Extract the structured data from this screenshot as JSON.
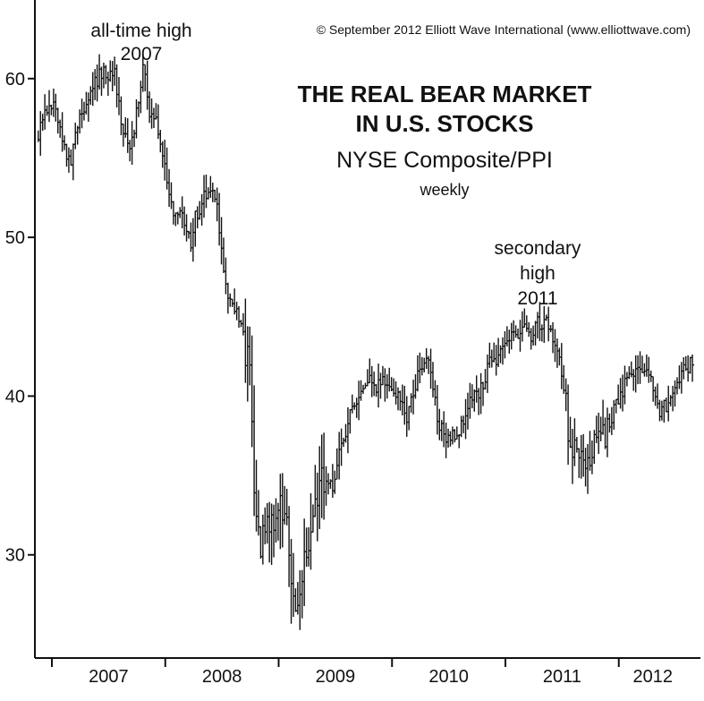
{
  "chart_data": {
    "type": "line",
    "subtype": "weekly price bars (high-low with close tick)",
    "title": "THE REAL BEAR MARKET IN U.S. STOCKS",
    "title_lines": [
      "THE REAL BEAR MARKET",
      "IN U.S. STOCKS"
    ],
    "subtitle": "NYSE Composite/PPI",
    "frequency": "weekly",
    "copyright": "© September 2012 Elliott Wave International (www.elliottwave.com)",
    "xlabel": "",
    "ylabel": "",
    "ylim": [
      23.5,
      64.5
    ],
    "xlim": [
      2006.85,
      2012.72
    ],
    "y_ticks": [
      30,
      40,
      50,
      60
    ],
    "x_year_labels": [
      {
        "label": "2007",
        "center": 2007.5
      },
      {
        "label": "2008",
        "center": 2008.5
      },
      {
        "label": "2009",
        "center": 2009.5
      },
      {
        "label": "2010",
        "center": 2010.5
      },
      {
        "label": "2011",
        "center": 2011.5
      },
      {
        "label": "2012",
        "center": 2012.3
      }
    ],
    "x_year_boundaries": [
      2007,
      2008,
      2009,
      2010,
      2011,
      2012
    ],
    "grid": false,
    "annotations": [
      {
        "lines": [
          "all-time high",
          "2007"
        ],
        "x": 2007.8,
        "y": 61.3
      },
      {
        "lines": [
          "secondary",
          "high",
          "2011"
        ],
        "x": 2011.35,
        "y": 45.8
      }
    ],
    "anchors": [
      [
        2006.88,
        56.5
      ],
      [
        2006.95,
        57.8
      ],
      [
        2007.02,
        58.2
      ],
      [
        2007.09,
        56.0
      ],
      [
        2007.16,
        54.5
      ],
      [
        2007.25,
        57.8
      ],
      [
        2007.35,
        59.5
      ],
      [
        2007.45,
        60.5
      ],
      [
        2007.55,
        60.3
      ],
      [
        2007.62,
        57.0
      ],
      [
        2007.7,
        55.5
      ],
      [
        2007.78,
        59.5
      ],
      [
        2007.8,
        61.2
      ],
      [
        2007.86,
        58.0
      ],
      [
        2007.93,
        57.0
      ],
      [
        2008.0,
        54.5
      ],
      [
        2008.05,
        52.0
      ],
      [
        2008.12,
        51.5
      ],
      [
        2008.18,
        51.0
      ],
      [
        2008.22,
        49.5
      ],
      [
        2008.27,
        51.5
      ],
      [
        2008.33,
        52.3
      ],
      [
        2008.4,
        53.2
      ],
      [
        2008.45,
        52.5
      ],
      [
        2008.5,
        48.5
      ],
      [
        2008.56,
        46.0
      ],
      [
        2008.62,
        45.5
      ],
      [
        2008.68,
        44.0
      ],
      [
        2008.72,
        42.5
      ],
      [
        2008.76,
        40.5
      ],
      [
        2008.79,
        32.5
      ],
      [
        2008.83,
        30.5
      ],
      [
        2008.9,
        31.5
      ],
      [
        2008.96,
        32.5
      ],
      [
        2009.02,
        33.0
      ],
      [
        2009.08,
        31.0
      ],
      [
        2009.12,
        28.5
      ],
      [
        2009.17,
        26.5
      ],
      [
        2009.2,
        28.5
      ],
      [
        2009.26,
        31.0
      ],
      [
        2009.32,
        33.0
      ],
      [
        2009.4,
        34.8
      ],
      [
        2009.48,
        34.5
      ],
      [
        2009.55,
        37.0
      ],
      [
        2009.62,
        38.5
      ],
      [
        2009.7,
        39.8
      ],
      [
        2009.78,
        41.0
      ],
      [
        2009.85,
        40.5
      ],
      [
        2009.92,
        40.8
      ],
      [
        2010.0,
        40.5
      ],
      [
        2010.06,
        39.8
      ],
      [
        2010.12,
        38.5
      ],
      [
        2010.18,
        40.2
      ],
      [
        2010.25,
        41.8
      ],
      [
        2010.31,
        42.5
      ],
      [
        2010.36,
        40.5
      ],
      [
        2010.41,
        38.0
      ],
      [
        2010.48,
        37.5
      ],
      [
        2010.56,
        37.5
      ],
      [
        2010.63,
        38.3
      ],
      [
        2010.7,
        39.8
      ],
      [
        2010.78,
        40.5
      ],
      [
        2010.86,
        42.0
      ],
      [
        2010.94,
        42.5
      ],
      [
        2011.02,
        43.5
      ],
      [
        2011.1,
        44.0
      ],
      [
        2011.16,
        44.3
      ],
      [
        2011.22,
        43.5
      ],
      [
        2011.28,
        44.5
      ],
      [
        2011.35,
        44.8
      ],
      [
        2011.42,
        43.5
      ],
      [
        2011.48,
        42.2
      ],
      [
        2011.53,
        40.0
      ],
      [
        2011.57,
        36.5
      ],
      [
        2011.63,
        37.3
      ],
      [
        2011.7,
        34.8
      ],
      [
        2011.75,
        35.8
      ],
      [
        2011.81,
        38.5
      ],
      [
        2011.88,
        37.5
      ],
      [
        2011.94,
        38.8
      ],
      [
        2012.0,
        40.0
      ],
      [
        2012.08,
        41.0
      ],
      [
        2012.15,
        41.8
      ],
      [
        2012.22,
        42.0
      ],
      [
        2012.28,
        41.0
      ],
      [
        2012.35,
        38.8
      ],
      [
        2012.42,
        39.5
      ],
      [
        2012.5,
        40.5
      ],
      [
        2012.57,
        41.5
      ],
      [
        2012.65,
        42.3
      ]
    ],
    "bar_seed": 20120917
  }
}
